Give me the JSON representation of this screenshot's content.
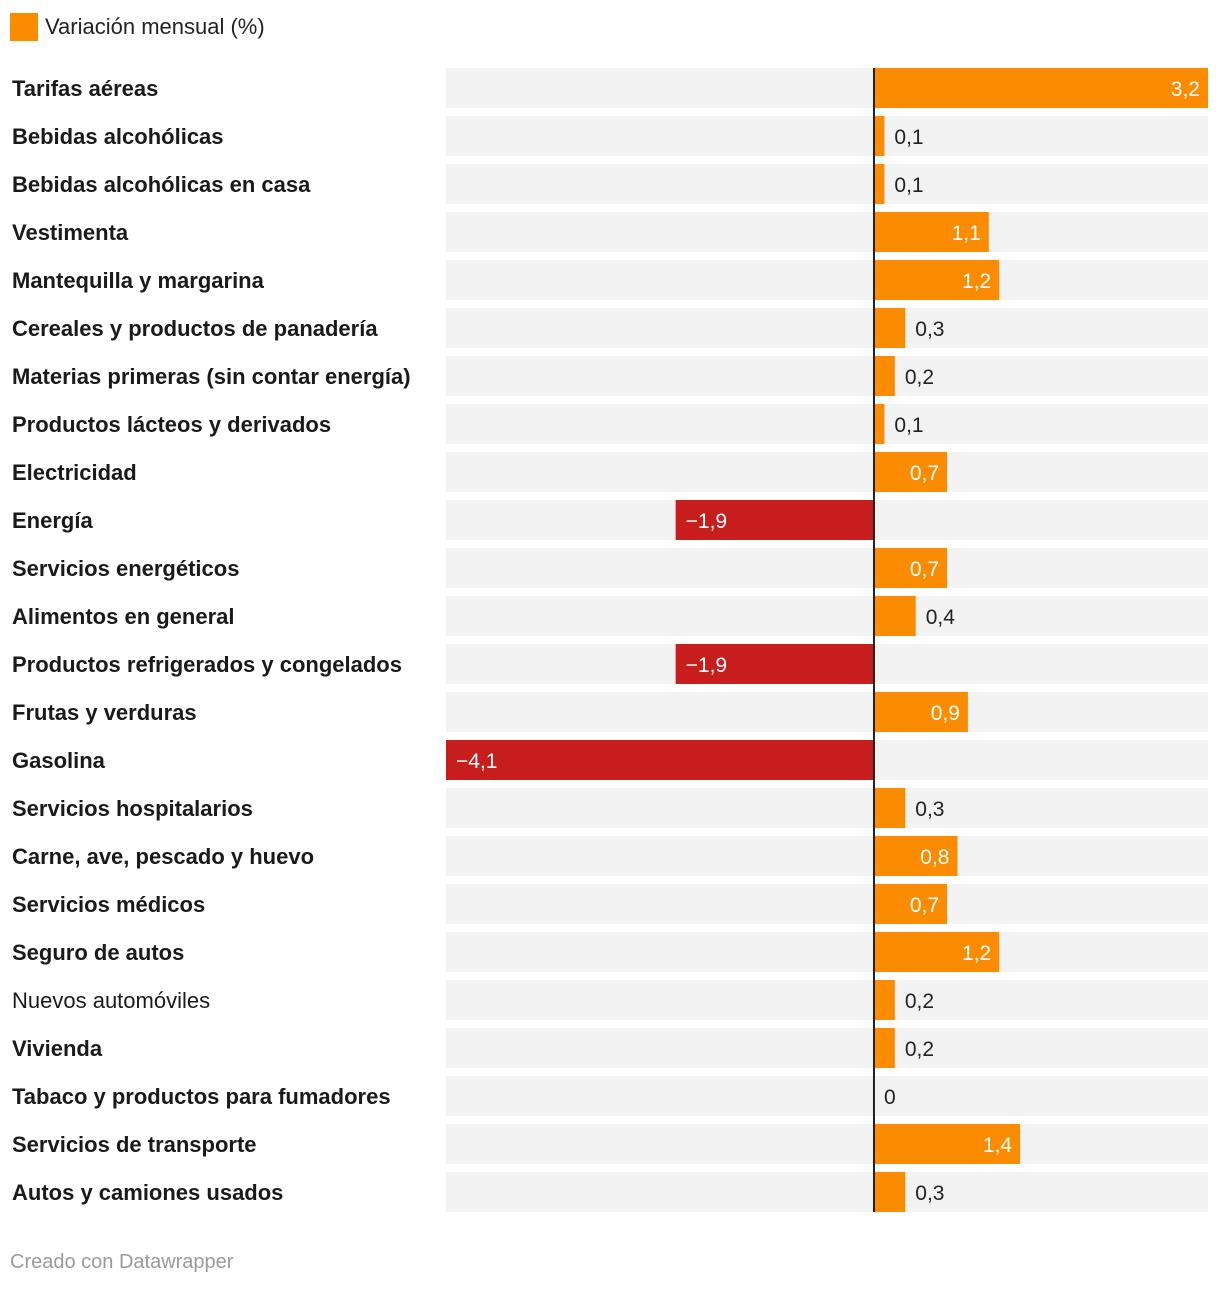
{
  "legend": {
    "label": "Variación mensual (%)",
    "color": "#fb8c00"
  },
  "footer": {
    "text": "Creado con Datawrapper"
  },
  "colors": {
    "positive": "#fb8c00",
    "negative": "#c71e1d",
    "track": "#f2f2f2",
    "axis": "#222222"
  },
  "chart_data": {
    "type": "bar",
    "orientation": "horizontal",
    "title": "",
    "series_name": "Variación mensual (%)",
    "xlim": [
      -4.1,
      3.2
    ],
    "categories": [
      "Tarifas aéreas",
      "Bebidas alcohólicas",
      "Bebidas alcohólicas en casa",
      "Vestimenta",
      "Mantequilla y margarina",
      "Cereales y productos de panadería",
      "Materias primeras (sin contar energía)",
      "Productos lácteos y derivados",
      "Electricidad",
      "Energía",
      "Servicios energéticos",
      "Alimentos en general",
      "Productos refrigerados y congelados",
      "Frutas y verduras",
      "Gasolina",
      "Servicios hospitalarios",
      "Carne, ave, pescado y huevo",
      "Servicios médicos",
      "Seguro de autos",
      "Nuevos automóviles",
      "Vivienda",
      "Tabaco y productos para fumadores",
      "Servicios de transporte",
      "Autos y camiones usados"
    ],
    "values": [
      3.2,
      0.1,
      0.1,
      1.1,
      1.2,
      0.3,
      0.2,
      0.1,
      0.7,
      -1.9,
      0.7,
      0.4,
      -1.9,
      0.9,
      -4.1,
      0.3,
      0.8,
      0.7,
      1.2,
      0.2,
      0.2,
      0,
      1.4,
      0.3
    ],
    "value_labels": [
      "3,2",
      "0,1",
      "0,1",
      "1,1",
      "1,2",
      "0,3",
      "0,2",
      "0,1",
      "0,7",
      "−1,9",
      "0,7",
      "0,4",
      "−1,9",
      "0,9",
      "−4,1",
      "0,3",
      "0,8",
      "0,7",
      "1,2",
      "0,2",
      "0,2",
      "0",
      "1,4",
      "0,3"
    ],
    "bold_labels": [
      true,
      true,
      true,
      true,
      true,
      true,
      true,
      true,
      true,
      true,
      true,
      true,
      true,
      true,
      true,
      true,
      true,
      true,
      true,
      false,
      true,
      true,
      true,
      true
    ]
  }
}
